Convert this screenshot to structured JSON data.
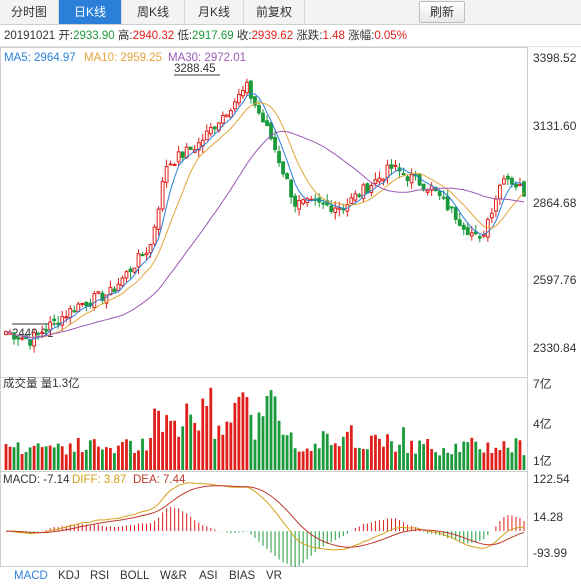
{
  "tabs": [
    {
      "label": "分时图",
      "active": false
    },
    {
      "label": "日K线",
      "active": true
    },
    {
      "label": "周K线",
      "active": false
    },
    {
      "label": "月K线",
      "active": false
    },
    {
      "label": "前复权",
      "active": false
    }
  ],
  "refresh_label": "刷新",
  "info": {
    "date": "20191021",
    "open_label": "开:",
    "open": "2933.90",
    "high_label": "高:",
    "high": "2940.32",
    "low_label": "低:",
    "low": "2917.69",
    "close_label": "收:",
    "close": "2939.62",
    "change_label": "涨跌:",
    "change": "1.48",
    "pct_label": "涨幅:",
    "pct": "0.05%"
  },
  "ma_legend": {
    "ma5": "MA5: 2964.97",
    "ma10": "MA10: 2959.25",
    "ma30": "MA30: 2972.01"
  },
  "price_axis": [
    "3398.52",
    "3131.60",
    "2864.68",
    "2597.76",
    "2330.84"
  ],
  "volume_label": "成交量 量1.3亿",
  "volume_axis": [
    "7亿",
    "4亿",
    "1亿"
  ],
  "macd_legend": {
    "macd": "MACD: -7.14",
    "diff": "DIFF: 3.87",
    "dea": "DEA: 7.44"
  },
  "macd_axis": [
    "122.54",
    "14.28",
    "-93.99"
  ],
  "annotations": {
    "high": "3288.45",
    "low": "2440.91"
  },
  "bottom_tabs": [
    {
      "label": "MACD",
      "active": true
    },
    {
      "label": "KDJ",
      "active": false
    },
    {
      "label": "RSI",
      "active": false
    },
    {
      "label": "BOLL",
      "active": false
    },
    {
      "label": "W&R",
      "active": false
    },
    {
      "label": "ASI",
      "active": false
    },
    {
      "label": "BIAS",
      "active": false
    },
    {
      "label": "VR",
      "active": false
    }
  ],
  "colors": {
    "up": "#e0201a",
    "down": "#1a9a3a",
    "ma5": "#2b7fd8",
    "ma10": "#e5a33a",
    "ma30": "#9b59b6",
    "diff": "#d4a017",
    "dea": "#c0392b"
  },
  "chart_data": {
    "type": "candlestick",
    "date": "20191021",
    "price_range": [
      2330.84,
      3398.52
    ],
    "volume_range_yi": [
      0,
      7
    ],
    "macd_range": [
      -93.99,
      122.54
    ],
    "price_key_points": [
      {
        "label": "start",
        "close": 2470
      },
      {
        "label": "low",
        "value": 2440.91
      },
      {
        "label": "rise",
        "close": 2560
      },
      {
        "label": "rise2",
        "close": 2720
      },
      {
        "label": "jump",
        "close": 3030
      },
      {
        "label": "mid",
        "close": 3100
      },
      {
        "label": "high",
        "value": 3288.45
      },
      {
        "label": "drop",
        "close": 2900
      },
      {
        "label": "range",
        "close": 2890
      },
      {
        "label": "bounce",
        "close": 3030
      },
      {
        "label": "range2",
        "close": 2950
      },
      {
        "label": "dip",
        "close": 2770
      },
      {
        "label": "recover",
        "close": 3000
      },
      {
        "label": "end",
        "close": 2939.62
      }
    ],
    "last": {
      "open": 2933.9,
      "high": 2940.32,
      "low": 2917.69,
      "close": 2939.62,
      "change": 1.48,
      "pct": 0.05
    },
    "ma_last": {
      "ma5": 2964.97,
      "ma10": 2959.25,
      "ma30": 2972.01
    },
    "macd_last": {
      "macd": -7.14,
      "diff": 3.87,
      "dea": 7.44
    }
  }
}
